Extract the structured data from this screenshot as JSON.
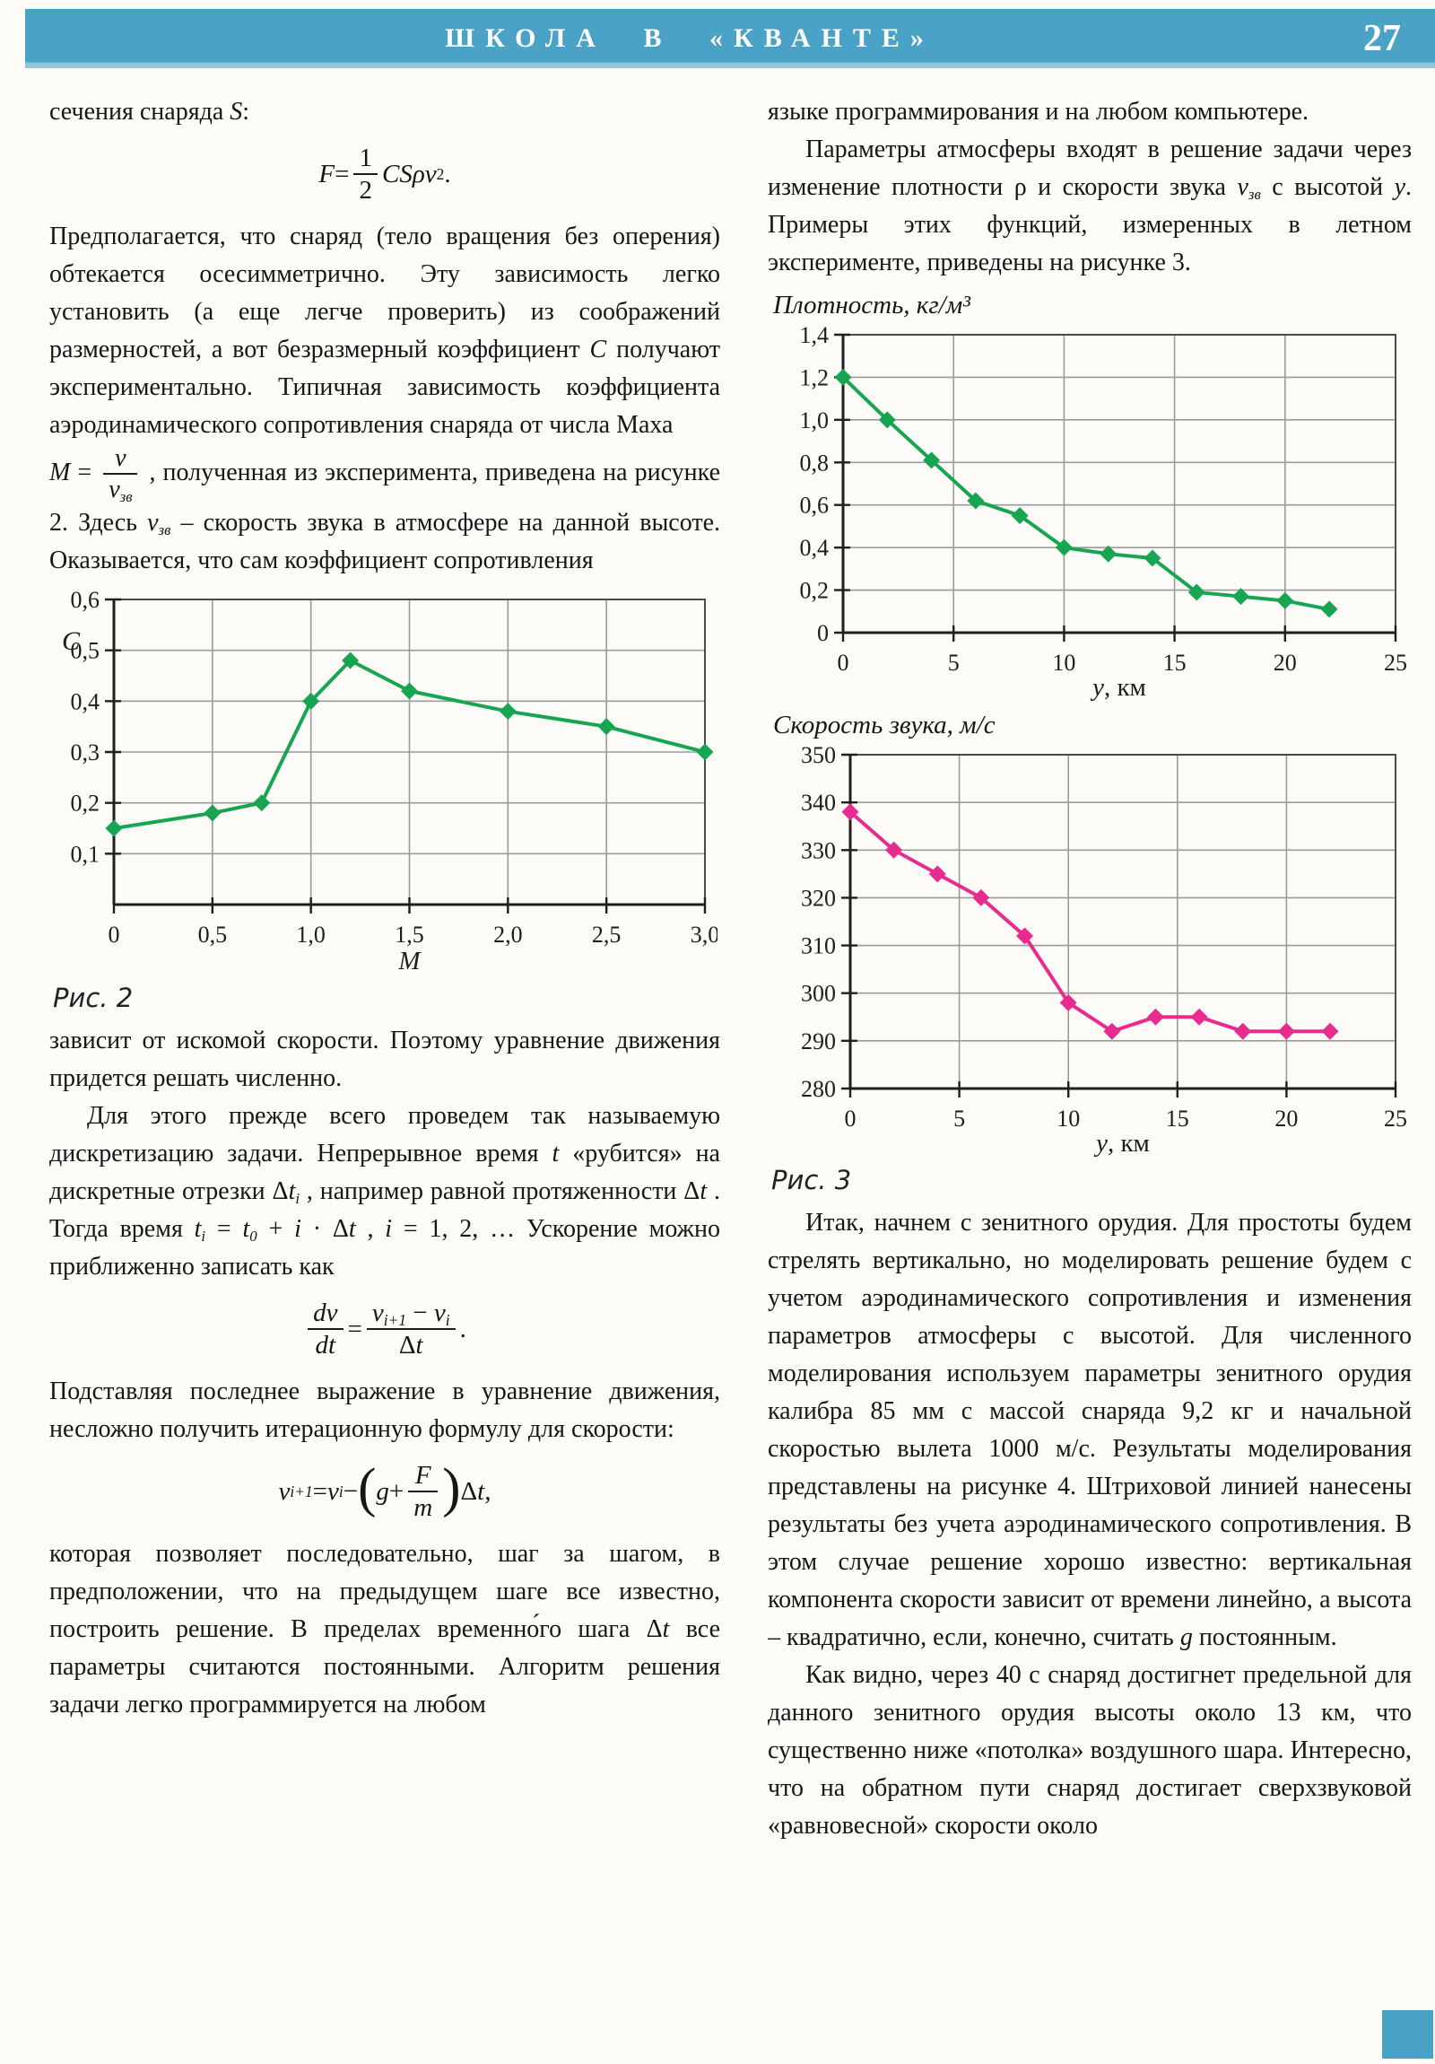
{
  "header": {
    "section_title": "ШКОЛА В «КВАНТЕ»",
    "page_number": "27"
  },
  "colors": {
    "header_bg": "#4aa2c7",
    "line_green": "#17a551",
    "line_magenta": "#e82c8f",
    "grid": "#9b9b9b"
  },
  "left_column": {
    "p_intro": [
      {
        "t": "сечения снаряда "
      },
      {
        "i": "S"
      },
      {
        "t": ":"
      }
    ],
    "formula_drag": [
      {
        "i": "F"
      },
      {
        "t": " = "
      },
      {
        "frac": {
          "num": [
            {
              "t": "1"
            }
          ],
          "den": [
            {
              "t": "2"
            }
          ]
        }
      },
      {
        "i": "CSρv"
      },
      {
        "sup": "2"
      },
      {
        "t": " ."
      }
    ],
    "p1": [
      {
        "t": "Предполагается, что снаряд (тело вращения без оперения) обтекается осесимметрично. Эту зависимость легко установить (а еще легче проверить) из соображений размерностей, а вот безразмерный коэффициент "
      },
      {
        "i": "C"
      },
      {
        "t": " получают экспериментально. Типичная зависимость коэффициента аэродинамического сопротивления снаряда от числа Маха"
      }
    ],
    "p2": [
      {
        "i": "M"
      },
      {
        "t": " = "
      },
      {
        "frac": {
          "num": [
            {
              "i": "v"
            }
          ],
          "den": [
            {
              "i": "v"
            },
            {
              "sub": "зв"
            }
          ]
        }
      },
      {
        "t": " , полученная из эксперимента, приведена на рисунке 2. Здесь "
      },
      {
        "i": "v"
      },
      {
        "sub": "зв"
      },
      {
        "t": " – скорость звука в атмосфере на данной высоте. Оказывается, что сам коэффициент сопротивления"
      }
    ],
    "p3": [
      {
        "t": "зависит от искомой скорости. Поэтому уравнение движения придется решать численно."
      }
    ],
    "p4": [
      {
        "t": "Для этого прежде всего проведем так называемую дискретизацию задачи. Непрерывное время "
      },
      {
        "i": "t"
      },
      {
        "t": " «рубится» на дискретные отрезки Δ"
      },
      {
        "i": "t"
      },
      {
        "sub": "i"
      },
      {
        "t": " , например равной протяженности Δ"
      },
      {
        "i": "t"
      },
      {
        "t": " . Тогда время "
      },
      {
        "i": "t"
      },
      {
        "sub": "i"
      },
      {
        "t": " = "
      },
      {
        "i": "t"
      },
      {
        "sub": "0"
      },
      {
        "t": " + "
      },
      {
        "i": "i"
      },
      {
        "t": " · Δ"
      },
      {
        "i": "t"
      },
      {
        "t": " , "
      },
      {
        "i": "i"
      },
      {
        "t": " = 1, 2, … Ускорение можно приближенно записать как"
      }
    ],
    "formula_accel": [
      {
        "frac": {
          "num": [
            {
              "i": "dv"
            }
          ],
          "den": [
            {
              "i": "dt"
            }
          ]
        }
      },
      {
        "t": " = "
      },
      {
        "frac": {
          "num": [
            {
              "i": "v"
            },
            {
              "sub": "i+1"
            },
            {
              "t": " − "
            },
            {
              "i": "v"
            },
            {
              "sub": "i"
            }
          ],
          "den": [
            {
              "t": "Δ"
            },
            {
              "i": "t"
            }
          ]
        }
      },
      {
        "t": " ."
      }
    ],
    "p5": [
      {
        "t": "Подставляя последнее выражение в уравнение движения, несложно получить итерационную формулу для скорости:"
      }
    ],
    "formula_iter": [
      {
        "i": "v"
      },
      {
        "sub": "i+1"
      },
      {
        "t": " = "
      },
      {
        "i": "v"
      },
      {
        "sub": "i"
      },
      {
        "t": " − "
      },
      {
        "big": "("
      },
      {
        "i": "g"
      },
      {
        "t": " + "
      },
      {
        "frac": {
          "num": [
            {
              "i": "F"
            }
          ],
          "den": [
            {
              "i": "m"
            }
          ]
        }
      },
      {
        "big": ")"
      },
      {
        "t": "Δ"
      },
      {
        "i": "t"
      },
      {
        "t": " ,"
      }
    ],
    "p6": [
      {
        "t": "которая позволяет последовательно, шаг за шагом, в предположении, что на предыдущем шаге все известно, построить решение. В пределах временно́го шага Δ"
      },
      {
        "i": "t"
      },
      {
        "t": " все параметры считаются постоянными. Алгоритм решения задачи легко программируется на любом"
      }
    ]
  },
  "right_column": {
    "p7": [
      {
        "t": "языке программирования и на любом компьютере."
      }
    ],
    "p8": [
      {
        "t": "Параметры атмосферы входят в решение задачи через изменение плотности ρ и скорости звука "
      },
      {
        "i": "v"
      },
      {
        "sub": "зв"
      },
      {
        "t": " с высотой "
      },
      {
        "i": "y"
      },
      {
        "t": ". Примеры этих функций, измеренных в летном эксперименте, приведены на рисунке 3."
      }
    ],
    "p9": [
      {
        "t": "Итак, начнем с зенитного орудия. Для простоты будем стрелять вертикально, но моделировать решение будем с учетом аэродинамического сопротивления и изменения параметров атмосферы с высотой. Для численного моделирования используем параметры зенитного орудия калибра 85 мм с массой снаряда 9,2 кг и начальной скоростью вылета 1000 м/с. Результаты моделирования представлены на рисунке 4. Штриховой линией нанесены результаты без учета аэродинамического сопротивления. В этом случае решение хорошо известно: вертикальная компонента скорости зависит от времени линейно, а высота – квадратично, если, конечно, считать "
      },
      {
        "i": "g"
      },
      {
        "t": " постоянным."
      }
    ],
    "p10": [
      {
        "t": "Как видно, через 40 с снаряд достигнет предельной для данного зенитного орудия высоты около 13 км, что существенно ниже «потолка» воздушного шара. Интересно, что на обратном пути снаряд достигает сверхзвуковой «равновесной» скорости около"
      }
    ]
  },
  "chart_data": [
    {
      "type": "line",
      "title": "",
      "caption": "Рис. 2",
      "ylabel": "C",
      "xlabel_i": "M",
      "xlabel_r": "",
      "x_range": [
        0,
        3
      ],
      "y_range": [
        0,
        0.6
      ],
      "x_ticks": [
        [
          0,
          "0"
        ],
        [
          0.5,
          "0,5"
        ],
        [
          1,
          "1,0"
        ],
        [
          1.5,
          "1,5"
        ],
        [
          2,
          "2,0"
        ],
        [
          2.5,
          "2,5"
        ],
        [
          3,
          "3,0"
        ]
      ],
      "y_ticks": [
        [
          0.1,
          "0,1"
        ],
        [
          0.2,
          "0,2"
        ],
        [
          0.3,
          "0,3"
        ],
        [
          0.4,
          "0,4"
        ],
        [
          0.5,
          "0,5"
        ],
        [
          0.6,
          "0,6"
        ]
      ],
      "x": [
        0,
        0.5,
        0.75,
        1.0,
        1.2,
        1.5,
        2.0,
        2.5,
        3.0
      ],
      "values": [
        0.15,
        0.18,
        0.2,
        0.4,
        0.48,
        0.42,
        0.38,
        0.35,
        0.3
      ],
      "color": "#17a551",
      "grid": true,
      "legend": "none"
    },
    {
      "type": "line",
      "title": "Плотность,  кг/м³",
      "caption": "",
      "ylabel": "",
      "xlabel_i": "y",
      "xlabel_r": ",  км",
      "x_range": [
        0,
        25
      ],
      "y_range": [
        0,
        1.4
      ],
      "x_ticks": [
        [
          0,
          "0"
        ],
        [
          5,
          "5"
        ],
        [
          10,
          "10"
        ],
        [
          15,
          "15"
        ],
        [
          20,
          "20"
        ],
        [
          25,
          "25"
        ]
      ],
      "y_ticks": [
        [
          0,
          "0"
        ],
        [
          0.2,
          "0,2"
        ],
        [
          0.4,
          "0,4"
        ],
        [
          0.6,
          "0,6"
        ],
        [
          0.8,
          "0,8"
        ],
        [
          1.0,
          "1,0"
        ],
        [
          1.2,
          "1,2"
        ],
        [
          1.4,
          "1,4"
        ]
      ],
      "x": [
        0,
        2,
        4,
        6,
        8,
        10,
        12,
        14,
        16,
        18,
        20,
        22
      ],
      "values": [
        1.2,
        1.0,
        0.81,
        0.62,
        0.55,
        0.4,
        0.37,
        0.35,
        0.19,
        0.17,
        0.15,
        0.11
      ],
      "color": "#17a551",
      "grid": true,
      "legend": "none"
    },
    {
      "type": "line",
      "title": "Скорость звука,  м/с",
      "caption": "Рис. 3",
      "ylabel": "",
      "xlabel_i": "y",
      "xlabel_r": ",  км",
      "x_range": [
        0,
        25
      ],
      "y_range": [
        280,
        350
      ],
      "x_ticks": [
        [
          0,
          "0"
        ],
        [
          5,
          "5"
        ],
        [
          10,
          "10"
        ],
        [
          15,
          "15"
        ],
        [
          20,
          "20"
        ],
        [
          25,
          "25"
        ]
      ],
      "y_ticks": [
        [
          280,
          "280"
        ],
        [
          290,
          "290"
        ],
        [
          300,
          "300"
        ],
        [
          310,
          "310"
        ],
        [
          320,
          "320"
        ],
        [
          330,
          "330"
        ],
        [
          340,
          "340"
        ],
        [
          350,
          "350"
        ]
      ],
      "x": [
        0,
        2,
        4,
        6,
        8,
        10,
        12,
        14,
        16,
        18,
        20,
        22
      ],
      "values": [
        338,
        330,
        325,
        320,
        312,
        298,
        292,
        295,
        295,
        292,
        292,
        292
      ],
      "color": "#e82c8f",
      "grid": true,
      "legend": "none"
    }
  ]
}
